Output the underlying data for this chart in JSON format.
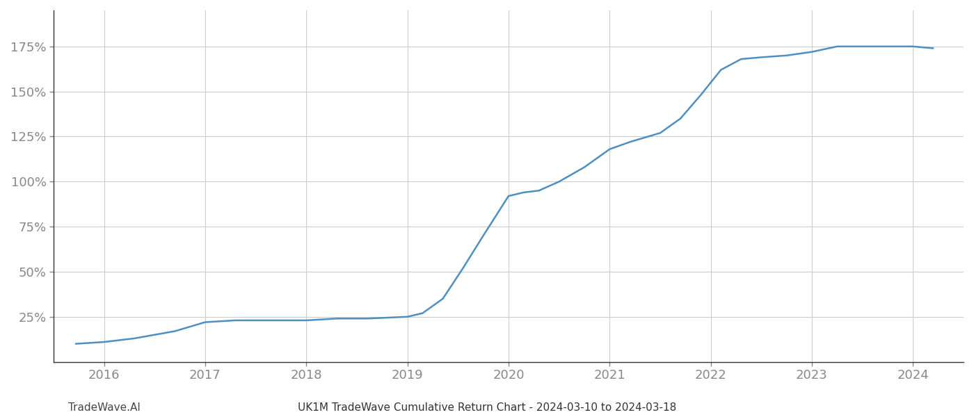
{
  "x": [
    2015.72,
    2016.0,
    2016.3,
    2016.7,
    2017.0,
    2017.3,
    2017.6,
    2018.0,
    2018.3,
    2018.6,
    2019.0,
    2019.15,
    2019.35,
    2019.55,
    2019.75,
    2020.0,
    2020.15,
    2020.3,
    2020.5,
    2020.75,
    2021.0,
    2021.2,
    2021.5,
    2021.7,
    2021.9,
    2022.1,
    2022.3,
    2022.5,
    2022.75,
    2023.0,
    2023.25,
    2023.5,
    2023.75,
    2024.0,
    2024.2
  ],
  "y": [
    10,
    11,
    13,
    17,
    22,
    23,
    23,
    23,
    24,
    24,
    25,
    27,
    35,
    52,
    70,
    92,
    94,
    95,
    100,
    108,
    118,
    122,
    127,
    135,
    148,
    162,
    168,
    169,
    170,
    172,
    175,
    175,
    175,
    175,
    174
  ],
  "line_color": "#4a90c4",
  "line_width": 1.8,
  "title": "UK1M TradeWave Cumulative Return Chart - 2024-03-10 to 2024-03-18",
  "watermark": "TradeWave.AI",
  "xlim": [
    2015.5,
    2024.5
  ],
  "ylim": [
    0,
    195
  ],
  "yticks": [
    25,
    50,
    75,
    100,
    125,
    150,
    175
  ],
  "xtick_labels": [
    "2016",
    "2017",
    "2018",
    "2019",
    "2020",
    "2021",
    "2022",
    "2023",
    "2024"
  ],
  "xtick_positions": [
    2016,
    2017,
    2018,
    2019,
    2020,
    2021,
    2022,
    2023,
    2024
  ],
  "background_color": "#ffffff",
  "grid_color": "#cccccc",
  "tick_color": "#888888",
  "spine_color": "#333333",
  "title_fontsize": 11,
  "watermark_fontsize": 11,
  "tick_fontsize": 13
}
